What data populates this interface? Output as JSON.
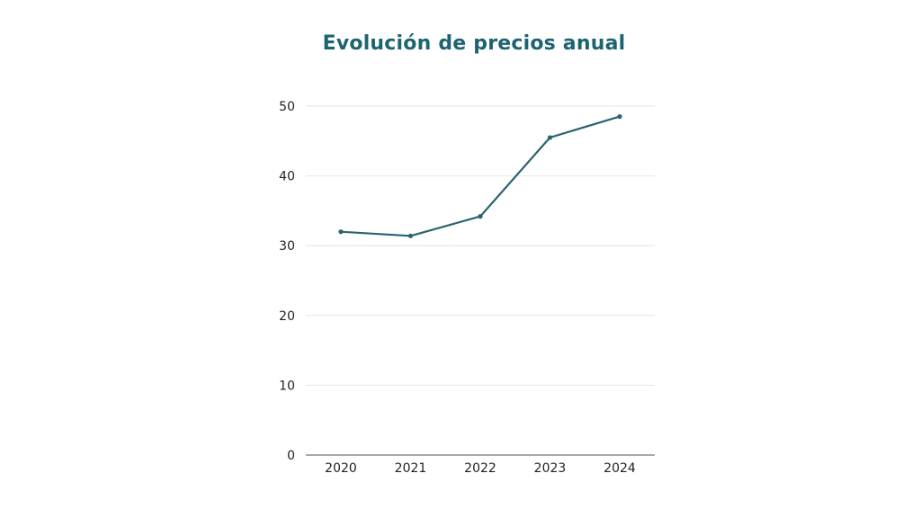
{
  "chart_data": {
    "type": "line",
    "title": "Evolución de precios anual",
    "xlabel": "",
    "ylabel": "",
    "categories": [
      "2020",
      "2021",
      "2022",
      "2023",
      "2024"
    ],
    "series": [
      {
        "values": [
          32.0,
          31.4,
          34.2,
          45.5,
          48.5
        ],
        "color": "#2b6470"
      }
    ],
    "ylim": [
      0,
      50
    ],
    "yticks": [
      0,
      10,
      20,
      30,
      40,
      50
    ],
    "grid": true,
    "legend": "none",
    "colors": {
      "title": "#1e6470",
      "line": "#2b6470",
      "grid": "#e6e6e6",
      "axis": "#555555"
    }
  }
}
